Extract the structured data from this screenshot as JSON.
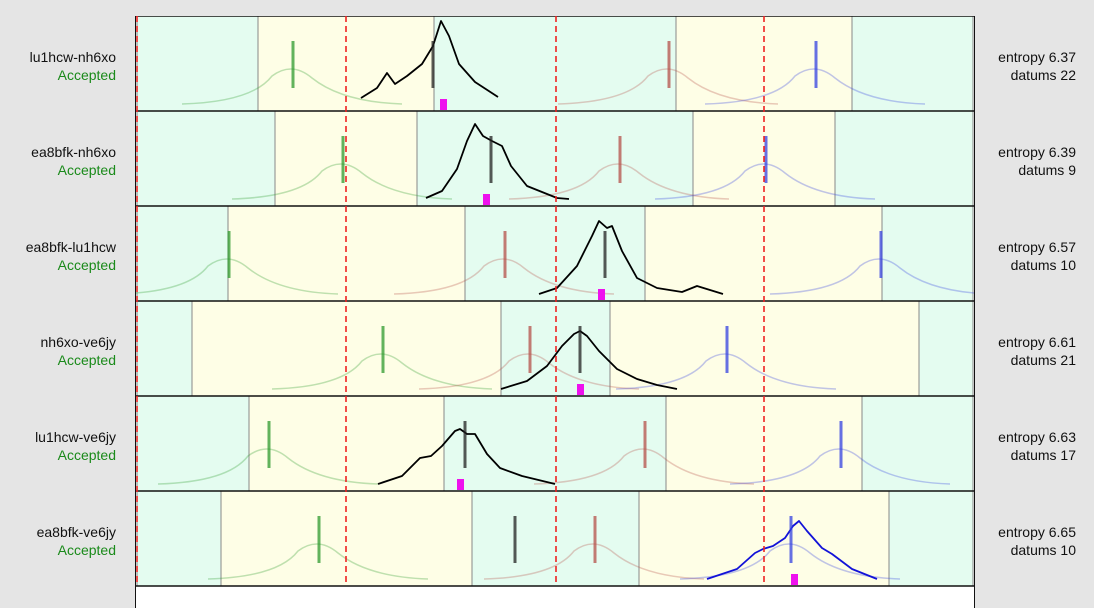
{
  "chart_data": {
    "type": "density-ridge",
    "title": "",
    "x_range": [
      0,
      836
    ],
    "reference_lines_x": [
      0,
      209,
      419,
      627
    ],
    "rows": [
      {
        "pair": "lu1hcw-nh6xo",
        "status": "Accepted",
        "entropy": "6.37",
        "datums": "22",
        "segments": [
          [
            0,
            121,
            "mint"
          ],
          [
            121,
            297,
            "yellow"
          ],
          [
            297,
            539,
            "mint"
          ],
          [
            539,
            715,
            "yellow"
          ],
          [
            715,
            836,
            "mint"
          ]
        ],
        "markers": [
          {
            "x": 156,
            "color": "#2e9a2e"
          },
          {
            "x": 532,
            "color": "#b5504a"
          },
          {
            "x": 679,
            "color": "#3340e0"
          },
          {
            "x": 296,
            "color": "#222"
          }
        ],
        "highlight_x": 306,
        "main_curve": {
          "color": "#000",
          "points": [
            [
              224,
              82
            ],
            [
              240,
              72
            ],
            [
              250,
              57
            ],
            [
              258,
              68
            ],
            [
              270,
              60
            ],
            [
              285,
              48
            ],
            [
              296,
              30
            ],
            [
              304,
              5
            ],
            [
              312,
              20
            ],
            [
              322,
              48
            ],
            [
              338,
              66
            ],
            [
              361,
              81
            ]
          ]
        }
      },
      {
        "pair": "ea8bfk-nh6xo",
        "status": "Accepted",
        "entropy": "6.39",
        "datums": "9",
        "segments": [
          [
            0,
            138,
            "mint"
          ],
          [
            138,
            280,
            "yellow"
          ],
          [
            280,
            556,
            "mint"
          ],
          [
            556,
            698,
            "yellow"
          ],
          [
            698,
            836,
            "mint"
          ]
        ],
        "markers": [
          {
            "x": 206,
            "color": "#2e9a2e"
          },
          {
            "x": 483,
            "color": "#b5504a"
          },
          {
            "x": 629,
            "color": "#3340e0"
          },
          {
            "x": 354,
            "color": "#222"
          }
        ],
        "highlight_x": 349,
        "main_curve": {
          "color": "#000",
          "points": [
            [
              289,
              87
            ],
            [
              305,
              80
            ],
            [
              320,
              58
            ],
            [
              330,
              30
            ],
            [
              338,
              13
            ],
            [
              346,
              25
            ],
            [
              355,
              30
            ],
            [
              365,
              35
            ],
            [
              374,
              55
            ],
            [
              390,
              75
            ],
            [
              420,
              87
            ],
            [
              432,
              88
            ]
          ]
        }
      },
      {
        "pair": "ea8bfk-lu1hcw",
        "status": "Accepted",
        "entropy": "6.57",
        "datums": "10",
        "segments": [
          [
            0,
            91,
            "mint"
          ],
          [
            91,
            328,
            "yellow"
          ],
          [
            328,
            508,
            "mint"
          ],
          [
            508,
            745,
            "yellow"
          ],
          [
            745,
            836,
            "mint"
          ]
        ],
        "markers": [
          {
            "x": 92,
            "color": "#2e9a2e"
          },
          {
            "x": 368,
            "color": "#b5504a"
          },
          {
            "x": 744,
            "color": "#3340e0"
          },
          {
            "x": 468,
            "color": "#222"
          }
        ],
        "highlight_x": 464,
        "main_curve": {
          "color": "#000",
          "points": [
            [
              402,
              88
            ],
            [
              420,
              82
            ],
            [
              440,
              60
            ],
            [
              455,
              30
            ],
            [
              462,
              15
            ],
            [
              470,
              22
            ],
            [
              475,
              20
            ],
            [
              485,
              45
            ],
            [
              500,
              72
            ],
            [
              520,
              82
            ],
            [
              545,
              86
            ],
            [
              560,
              80
            ],
            [
              586,
              88
            ]
          ]
        }
      },
      {
        "pair": "nh6xo-ve6jy",
        "status": "Accepted",
        "entropy": "6.61",
        "datums": "21",
        "segments": [
          [
            0,
            55,
            "mint"
          ],
          [
            55,
            364,
            "yellow"
          ],
          [
            364,
            473,
            "mint"
          ],
          [
            473,
            782,
            "yellow"
          ],
          [
            782,
            836,
            "mint"
          ]
        ],
        "markers": [
          {
            "x": 246,
            "color": "#2e9a2e"
          },
          {
            "x": 393,
            "color": "#b5504a"
          },
          {
            "x": 590,
            "color": "#3340e0"
          },
          {
            "x": 443,
            "color": "#222"
          }
        ],
        "highlight_x": 443,
        "main_curve": {
          "color": "#000",
          "points": [
            [
              364,
              88
            ],
            [
              390,
              80
            ],
            [
              410,
              65
            ],
            [
              425,
              45
            ],
            [
              437,
              33
            ],
            [
              443,
              30
            ],
            [
              450,
              35
            ],
            [
              462,
              50
            ],
            [
              480,
              68
            ],
            [
              500,
              78
            ],
            [
              520,
              84
            ],
            [
              540,
              88
            ]
          ]
        }
      },
      {
        "pair": "lu1hcw-ve6jy",
        "status": "Accepted",
        "entropy": "6.63",
        "datums": "17",
        "segments": [
          [
            0,
            112,
            "mint"
          ],
          [
            112,
            307,
            "yellow"
          ],
          [
            307,
            529,
            "mint"
          ],
          [
            529,
            725,
            "yellow"
          ],
          [
            725,
            836,
            "mint"
          ]
        ],
        "markers": [
          {
            "x": 132,
            "color": "#2e9a2e"
          },
          {
            "x": 508,
            "color": "#b5504a"
          },
          {
            "x": 704,
            "color": "#3340e0"
          },
          {
            "x": 328,
            "color": "#222"
          }
        ],
        "highlight_x": 323,
        "main_curve": {
          "color": "#000",
          "points": [
            [
              241,
              88
            ],
            [
              265,
              80
            ],
            [
              283,
              62
            ],
            [
              294,
              60
            ],
            [
              305,
              50
            ],
            [
              318,
              35
            ],
            [
              323,
              33
            ],
            [
              330,
              38
            ],
            [
              338,
              38
            ],
            [
              350,
              58
            ],
            [
              363,
              72
            ],
            [
              385,
              80
            ],
            [
              418,
              88
            ]
          ]
        }
      },
      {
        "pair": "ea8bfk-ve6jy",
        "status": "Accepted",
        "entropy": "6.65",
        "datums": "10",
        "segments": [
          [
            0,
            84,
            "mint"
          ],
          [
            84,
            335,
            "yellow"
          ],
          [
            335,
            502,
            "mint"
          ],
          [
            502,
            752,
            "yellow"
          ],
          [
            752,
            836,
            "mint"
          ]
        ],
        "markers": [
          {
            "x": 182,
            "color": "#2e9a2e"
          },
          {
            "x": 458,
            "color": "#b5504a"
          },
          {
            "x": 654,
            "color": "#3340e0"
          },
          {
            "x": 378,
            "color": "#222"
          }
        ],
        "highlight_x": 657,
        "main_curve": {
          "color": "#1212d8",
          "points": [
            [
              570,
              88
            ],
            [
              600,
              78
            ],
            [
              618,
              62
            ],
            [
              626,
              58
            ],
            [
              636,
              55
            ],
            [
              648,
              47
            ],
            [
              656,
              35
            ],
            [
              662,
              30
            ],
            [
              670,
              40
            ],
            [
              685,
              57
            ],
            [
              695,
              63
            ],
            [
              715,
              78
            ],
            [
              740,
              88
            ]
          ]
        }
      }
    ],
    "colors": {
      "mint": "#e4fcf0",
      "yellow": "#fefee6",
      "ref_line": "#ee2222",
      "highlight": "#ee11ee"
    }
  }
}
